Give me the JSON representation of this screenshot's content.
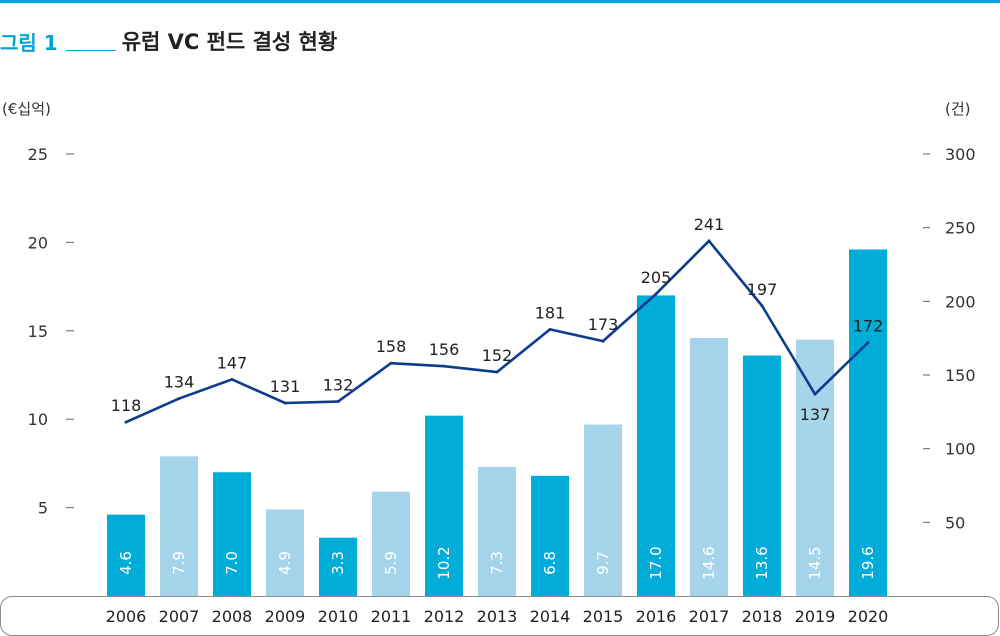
{
  "figure": {
    "label": "그림 1",
    "title": "유럽 VC 펀드 결성 현황"
  },
  "colors": {
    "bar_dark": "#00acd8",
    "bar_light": "#a6d5eb",
    "line": "#0e3c8c",
    "accent": "#00a3d6"
  },
  "chart_data": {
    "type": "bar",
    "combo": "bar+line (dual axis)",
    "title": "유럽 VC 펀드 결성 현황",
    "left_axis_unit": "(€십억)",
    "right_axis_unit": "(건)",
    "categories": [
      "2006",
      "2007",
      "2008",
      "2009",
      "2010",
      "2011",
      "2012",
      "2013",
      "2014",
      "2015",
      "2016",
      "2017",
      "2018",
      "2019",
      "2020"
    ],
    "bar_labels": [
      "4.6",
      "7.9",
      "7.0",
      "4.9",
      "3.3",
      "5.9",
      "10.2",
      "7.3",
      "6.8",
      "9.7",
      "17.0",
      "14.6",
      "13.6",
      "14.5",
      "19.6"
    ],
    "bar_values": [
      4.6,
      7.9,
      7.0,
      4.9,
      3.3,
      5.9,
      10.2,
      7.3,
      6.8,
      9.7,
      17.0,
      14.6,
      13.6,
      14.5,
      19.6
    ],
    "bar_shade": [
      "dark",
      "light",
      "dark",
      "light",
      "dark",
      "light",
      "dark",
      "light",
      "dark",
      "light",
      "dark",
      "light",
      "dark",
      "light",
      "dark"
    ],
    "line_labels": [
      "118",
      "134",
      "147",
      "131",
      "132",
      "158",
      "156",
      "152",
      "181",
      "173",
      "205",
      "241",
      "197",
      "137",
      "172"
    ],
    "line_values": [
      118,
      134,
      147,
      131,
      132,
      158,
      156,
      152,
      181,
      173,
      205,
      241,
      197,
      137,
      172
    ],
    "left_ticks": [
      "5",
      "10",
      "15",
      "20",
      "25"
    ],
    "left_tick_values": [
      5,
      10,
      15,
      20,
      25
    ],
    "right_ticks": [
      "50",
      "100",
      "150",
      "200",
      "250",
      "300"
    ],
    "right_tick_values": [
      50,
      100,
      150,
      200,
      250,
      300
    ],
    "left_ylim": [
      0,
      25
    ],
    "right_ylim": [
      0,
      300
    ],
    "grid": false,
    "legend": "none"
  }
}
